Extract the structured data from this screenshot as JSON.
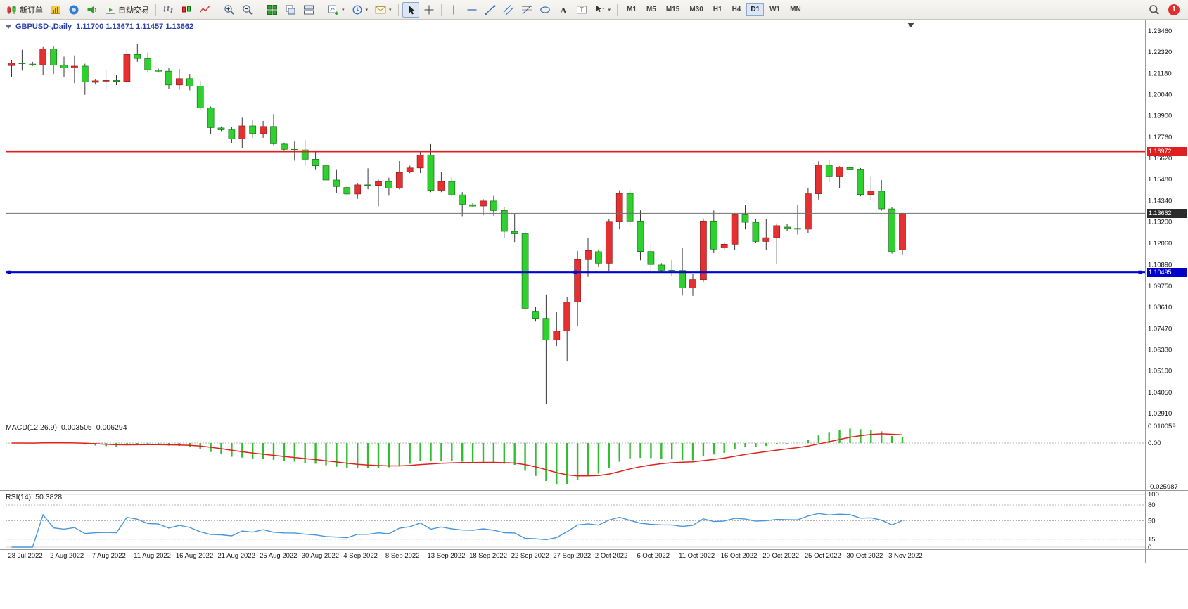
{
  "colors": {
    "up_candle": "#e43030",
    "down_candle": "#2fd12f",
    "wick": "#3a3a3a",
    "resistance_line": "#e02020",
    "bid_line_tag": "#2b2b2b",
    "support_line": "#0000d0",
    "macd_histogram": "#2fbf2f",
    "macd_signal": "#e02020",
    "rsi_line": "#4b96d8",
    "background": "#ffffff"
  },
  "toolbar": {
    "items": [
      {
        "name": "new-order-button",
        "icon": "neworder",
        "label": "新订单"
      },
      {
        "name": "profiles-button",
        "icon": "profile"
      },
      {
        "name": "market-watch-button",
        "icon": "community"
      },
      {
        "name": "alerts-button",
        "icon": "megaphone"
      },
      {
        "name": "autotrading-button",
        "icon": "autotrading",
        "label": "自动交易"
      },
      {
        "sep": true
      },
      {
        "name": "bar-chart-button",
        "icon": "bars"
      },
      {
        "name": "candlestick-chart-button",
        "icon": "candles"
      },
      {
        "name": "line-chart-button",
        "icon": "linechart"
      },
      {
        "sep": true
      },
      {
        "name": "zoom-in-button",
        "icon": "zoomin"
      },
      {
        "name": "zoom-out-button",
        "icon": "zoomout"
      },
      {
        "sep": true
      },
      {
        "name": "tile-windows-button",
        "icon": "tile"
      },
      {
        "name": "cascade-windows-button",
        "icon": "cascade"
      },
      {
        "name": "arrange-windows-button",
        "icon": "arrange"
      },
      {
        "sep": true
      },
      {
        "name": "new-chart-button",
        "icon": "newchart",
        "dropdown": true
      },
      {
        "name": "periods-button",
        "icon": "clock",
        "dropdown": true
      },
      {
        "name": "templates-button",
        "icon": "mail",
        "dropdown": true
      },
      {
        "sep": true
      },
      {
        "name": "cursor-button",
        "icon": "cursor",
        "pressed": true
      },
      {
        "name": "crosshair-button",
        "icon": "crosshair"
      },
      {
        "sep": true
      },
      {
        "name": "vertical-line-button",
        "icon": "vline"
      },
      {
        "name": "horizontal-line-button",
        "icon": "hline"
      },
      {
        "name": "trendline-button",
        "icon": "trendline"
      },
      {
        "name": "channel-button",
        "icon": "channel"
      },
      {
        "name": "fibonacci-button",
        "icon": "fibo"
      },
      {
        "name": "shapes-button",
        "icon": "shapes"
      },
      {
        "name": "text-button",
        "icon": "textA"
      },
      {
        "name": "label-button",
        "icon": "labelT"
      },
      {
        "name": "arrows-button",
        "icon": "arrowsmore",
        "dropdown": true
      },
      {
        "sep": true
      },
      {
        "type": "timeframes"
      }
    ],
    "timeframes": [
      "M1",
      "M5",
      "M15",
      "M30",
      "H1",
      "H4",
      "D1",
      "W1",
      "MN"
    ],
    "selected_timeframe": "D1",
    "notification_count": "1"
  },
  "chart_header": {
    "symbol": "GBPUSD-,Daily",
    "values": "1.11700 1.13671 1.11457 1.13662"
  },
  "macd": {
    "label": "MACD(12,26,9)",
    "main_value": "0.003505",
    "signal_value": "0.006294",
    "fast": 12,
    "slow": 26,
    "signal": 9,
    "axis_labels": [
      "0.010059",
      "0.00",
      "-0.025987"
    ],
    "histogram_color": "#2fbf2f",
    "signal_color": "#e02020"
  },
  "rsi": {
    "label": "RSI(14)",
    "value": "50.3828",
    "period": 14,
    "axis_labels": [
      "100",
      "80",
      "50",
      "15",
      "0"
    ],
    "levels": [
      80,
      50,
      15
    ],
    "line_color": "#4b96d8"
  },
  "chart_data": {
    "type": "candlestick",
    "symbol": "GBPUSD-",
    "period": "Daily",
    "up_color": "#e43030",
    "down_color": "#2fd12f",
    "wick_color": "#3a3a3a",
    "y_ticks": [
      "1.23460",
      "1.22320",
      "1.21180",
      "1.20040",
      "1.18900",
      "1.17760",
      "1.16620",
      "1.15480",
      "1.14340",
      "1.13200",
      "1.12060",
      "1.10890",
      "1.09750",
      "1.08610",
      "1.07470",
      "1.06330",
      "1.05190",
      "1.04050",
      "1.02910"
    ],
    "x_ticks": [
      {
        "i": 0,
        "label": "28 Jul 2022"
      },
      {
        "i": 4,
        "label": "2 Aug 2022"
      },
      {
        "i": 8,
        "label": "7 Aug 2022"
      },
      {
        "i": 12,
        "label": "11 Aug 2022"
      },
      {
        "i": 16,
        "label": "16 Aug 2022"
      },
      {
        "i": 20,
        "label": "21 Aug 2022"
      },
      {
        "i": 24,
        "label": "25 Aug 2022"
      },
      {
        "i": 28,
        "label": "30 Aug 2022"
      },
      {
        "i": 32,
        "label": "4 Sep 2022"
      },
      {
        "i": 36,
        "label": "8 Sep 2022"
      },
      {
        "i": 40,
        "label": "13 Sep 2022"
      },
      {
        "i": 44,
        "label": "18 Sep 2022"
      },
      {
        "i": 48,
        "label": "22 Sep 2022"
      },
      {
        "i": 52,
        "label": "27 Sep 2022"
      },
      {
        "i": 56,
        "label": "2 Oct 2022"
      },
      {
        "i": 60,
        "label": "6 Oct 2022"
      },
      {
        "i": 64,
        "label": "11 Oct 2022"
      },
      {
        "i": 68,
        "label": "16 Oct 2022"
      },
      {
        "i": 72,
        "label": "20 Oct 2022"
      },
      {
        "i": 76,
        "label": "25 Oct 2022"
      },
      {
        "i": 80,
        "label": "30 Oct 2022"
      },
      {
        "i": 84,
        "label": "3 Nov 2022"
      }
    ],
    "hlines": [
      {
        "name": "resistance-hline",
        "price": 1.16972,
        "color": "#e02020",
        "width": 1.6,
        "tag_bg": "#e02020"
      },
      {
        "name": "bid-price-line",
        "price": 1.13662,
        "color": "#707070",
        "width": 1,
        "tag_bg": "#2b2b2b"
      },
      {
        "name": "support-hline",
        "price": 1.10495,
        "color": "#0000d0",
        "width": 2.2,
        "tag_bg": "#0000c8",
        "handles": true
      }
    ],
    "dates": [
      "2022-07-28",
      "2022-07-29",
      "2022-07-31",
      "2022-08-01",
      "2022-08-02",
      "2022-08-03",
      "2022-08-04",
      "2022-08-05",
      "2022-08-07",
      "2022-08-08",
      "2022-08-09",
      "2022-08-10",
      "2022-08-11",
      "2022-08-12",
      "2022-08-14",
      "2022-08-15",
      "2022-08-16",
      "2022-08-17",
      "2022-08-18",
      "2022-08-19",
      "2022-08-21",
      "2022-08-22",
      "2022-08-23",
      "2022-08-24",
      "2022-08-25",
      "2022-08-26",
      "2022-08-28",
      "2022-08-29",
      "2022-08-30",
      "2022-08-31",
      "2022-09-01",
      "2022-09-02",
      "2022-09-04",
      "2022-09-05",
      "2022-09-06",
      "2022-09-07",
      "2022-09-08",
      "2022-09-09",
      "2022-09-11",
      "2022-09-12",
      "2022-09-13",
      "2022-09-14",
      "2022-09-15",
      "2022-09-16",
      "2022-09-18",
      "2022-09-19",
      "2022-09-20",
      "2022-09-21",
      "2022-09-22",
      "2022-09-23",
      "2022-09-25",
      "2022-09-26",
      "2022-09-27",
      "2022-09-28",
      "2022-09-29",
      "2022-09-30",
      "2022-10-02",
      "2022-10-03",
      "2022-10-04",
      "2022-10-05",
      "2022-10-06",
      "2022-10-07",
      "2022-10-09",
      "2022-10-10",
      "2022-10-11",
      "2022-10-12",
      "2022-10-13",
      "2022-10-14",
      "2022-10-16",
      "2022-10-17",
      "2022-10-18",
      "2022-10-19",
      "2022-10-20",
      "2022-10-21",
      "2022-10-23",
      "2022-10-24",
      "2022-10-25",
      "2022-10-26",
      "2022-10-27",
      "2022-10-28",
      "2022-10-30",
      "2022-10-31",
      "2022-11-01",
      "2022-11-02",
      "2022-11-03",
      "2022-11-04"
    ],
    "ohlc": [
      [
        1.216,
        1.219,
        1.21,
        1.2174
      ],
      [
        1.2174,
        1.2245,
        1.2133,
        1.217
      ],
      [
        1.2168,
        1.218,
        1.2158,
        1.2164
      ],
      [
        1.2164,
        1.226,
        1.211,
        1.2249
      ],
      [
        1.2249,
        1.2265,
        1.2115,
        1.2162
      ],
      [
        1.2162,
        1.2208,
        1.21,
        1.2148
      ],
      [
        1.2148,
        1.2215,
        1.2065,
        1.2157
      ],
      [
        1.2157,
        1.217,
        1.2003,
        1.2072
      ],
      [
        1.207,
        1.2088,
        1.2058,
        1.2078
      ],
      [
        1.2078,
        1.2135,
        1.203,
        1.208
      ],
      [
        1.208,
        1.211,
        1.2055,
        1.2075
      ],
      [
        1.2075,
        1.2249,
        1.2065,
        1.222
      ],
      [
        1.222,
        1.2277,
        1.218,
        1.2198
      ],
      [
        1.2198,
        1.223,
        1.2122,
        1.2138
      ],
      [
        1.2136,
        1.2144,
        1.2122,
        1.213
      ],
      [
        1.213,
        1.2149,
        1.2035,
        1.2056
      ],
      [
        1.2056,
        1.2143,
        1.203,
        1.209
      ],
      [
        1.209,
        1.2115,
        1.2027,
        1.2049
      ],
      [
        1.2049,
        1.2078,
        1.1921,
        1.1933
      ],
      [
        1.1933,
        1.194,
        1.1792,
        1.1827
      ],
      [
        1.1825,
        1.1833,
        1.1808,
        1.1815
      ],
      [
        1.1815,
        1.183,
        1.1742,
        1.1766
      ],
      [
        1.1766,
        1.188,
        1.1717,
        1.1836
      ],
      [
        1.1836,
        1.1869,
        1.1771,
        1.1795
      ],
      [
        1.1795,
        1.1863,
        1.1772,
        1.1833
      ],
      [
        1.1833,
        1.19,
        1.1732,
        1.174
      ],
      [
        1.1738,
        1.1746,
        1.1702,
        1.171
      ],
      [
        1.171,
        1.1752,
        1.1649,
        1.1707
      ],
      [
        1.1707,
        1.176,
        1.1621,
        1.1657
      ],
      [
        1.1657,
        1.1695,
        1.1599,
        1.1622
      ],
      [
        1.1622,
        1.1633,
        1.1499,
        1.1545
      ],
      [
        1.1545,
        1.1599,
        1.1474,
        1.151
      ],
      [
        1.1505,
        1.1516,
        1.1462,
        1.147
      ],
      [
        1.147,
        1.153,
        1.1444,
        1.1519
      ],
      [
        1.1519,
        1.1608,
        1.1495,
        1.1516
      ],
      [
        1.1516,
        1.1547,
        1.1404,
        1.1537
      ],
      [
        1.1537,
        1.1558,
        1.1461,
        1.1502
      ],
      [
        1.1502,
        1.1647,
        1.1495,
        1.1586
      ],
      [
        1.159,
        1.1622,
        1.1582,
        1.161
      ],
      [
        1.161,
        1.1699,
        1.1583,
        1.168
      ],
      [
        1.168,
        1.1738,
        1.148,
        1.149
      ],
      [
        1.149,
        1.159,
        1.148,
        1.1537
      ],
      [
        1.1537,
        1.156,
        1.1459,
        1.1465
      ],
      [
        1.1465,
        1.148,
        1.1351,
        1.1415
      ],
      [
        1.1412,
        1.1424,
        1.1398,
        1.1405
      ],
      [
        1.1405,
        1.1442,
        1.1355,
        1.1432
      ],
      [
        1.1432,
        1.146,
        1.1353,
        1.1381
      ],
      [
        1.1381,
        1.14,
        1.1233,
        1.1269
      ],
      [
        1.1269,
        1.1365,
        1.1212,
        1.1256
      ],
      [
        1.1256,
        1.1274,
        1.084,
        1.0856
      ],
      [
        1.084,
        1.0862,
        1.0785,
        1.0802
      ],
      [
        1.0802,
        1.093,
        1.034,
        1.0685
      ],
      [
        1.0685,
        1.0838,
        1.0653,
        1.0734
      ],
      [
        1.0734,
        1.0916,
        1.057,
        1.0889
      ],
      [
        1.0889,
        1.1164,
        1.0763,
        1.1117
      ],
      [
        1.1117,
        1.1235,
        1.1025,
        1.1166
      ],
      [
        1.116,
        1.1172,
        1.108,
        1.1098
      ],
      [
        1.1098,
        1.1334,
        1.1055,
        1.1323
      ],
      [
        1.1323,
        1.149,
        1.128,
        1.1473
      ],
      [
        1.1473,
        1.1496,
        1.13,
        1.1325
      ],
      [
        1.1325,
        1.1382,
        1.1113,
        1.1161
      ],
      [
        1.1161,
        1.12,
        1.1056,
        1.1091
      ],
      [
        1.1088,
        1.1098,
        1.1052,
        1.106
      ],
      [
        1.106,
        1.1115,
        1.1028,
        1.1059
      ],
      [
        1.1059,
        1.1182,
        1.0924,
        1.0965
      ],
      [
        1.0965,
        1.1042,
        1.0922,
        1.101
      ],
      [
        1.101,
        1.1339,
        1.0997,
        1.1325
      ],
      [
        1.1325,
        1.1381,
        1.1152,
        1.1174
      ],
      [
        1.118,
        1.1212,
        1.1168,
        1.12
      ],
      [
        1.12,
        1.1365,
        1.117,
        1.1358
      ],
      [
        1.1358,
        1.141,
        1.128,
        1.1318
      ],
      [
        1.1318,
        1.1337,
        1.1205,
        1.1215
      ],
      [
        1.1215,
        1.1337,
        1.117,
        1.1235
      ],
      [
        1.1235,
        1.1312,
        1.1095,
        1.13
      ],
      [
        1.1292,
        1.131,
        1.1272,
        1.1285
      ],
      [
        1.1285,
        1.1412,
        1.1252,
        1.1281
      ],
      [
        1.1281,
        1.15,
        1.126,
        1.1471
      ],
      [
        1.1471,
        1.1646,
        1.144,
        1.1625
      ],
      [
        1.1625,
        1.1656,
        1.1533,
        1.1566
      ],
      [
        1.1566,
        1.162,
        1.1502,
        1.1615
      ],
      [
        1.1612,
        1.1622,
        1.1592,
        1.16
      ],
      [
        1.16,
        1.161,
        1.1458,
        1.1467
      ],
      [
        1.1467,
        1.1565,
        1.144,
        1.1485
      ],
      [
        1.1485,
        1.1545,
        1.138,
        1.139
      ],
      [
        1.139,
        1.14,
        1.115,
        1.116
      ],
      [
        1.117,
        1.13671,
        1.11457,
        1.13662
      ]
    ]
  }
}
